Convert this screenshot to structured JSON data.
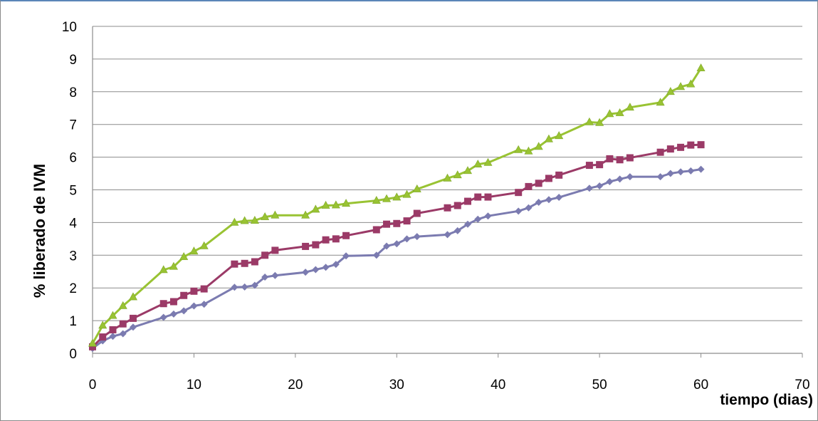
{
  "chart_data": {
    "type": "line",
    "xlabel": "tiempo (dias)",
    "ylabel": "% liberado de IVM",
    "xlim": [
      0,
      70
    ],
    "ylim": [
      0,
      10
    ],
    "x_ticks": [
      "0",
      "10",
      "20",
      "30",
      "40",
      "50",
      "60",
      "70"
    ],
    "y_ticks": [
      "0",
      "1",
      "2",
      "3",
      "4",
      "5",
      "6",
      "7",
      "8",
      "9",
      "10"
    ],
    "grid": "horizontal",
    "legend": "none",
    "series": [
      {
        "marker": "diamond",
        "color": "#7b7bb0",
        "x": [
          0,
          1,
          2,
          3,
          4,
          7,
          8,
          9,
          10,
          11,
          14,
          15,
          16,
          17,
          18,
          21,
          22,
          23,
          24,
          25,
          28,
          29,
          30,
          31,
          32,
          35,
          36,
          37,
          38,
          39,
          42,
          43,
          44,
          45,
          46,
          49,
          50,
          51,
          52,
          53,
          56,
          57,
          58,
          59,
          60
        ],
        "y": [
          0.15,
          0.38,
          0.52,
          0.6,
          0.8,
          1.1,
          1.2,
          1.3,
          1.45,
          1.5,
          2.02,
          2.03,
          2.08,
          2.33,
          2.38,
          2.48,
          2.56,
          2.63,
          2.72,
          2.98,
          3.0,
          3.28,
          3.35,
          3.5,
          3.57,
          3.63,
          3.75,
          3.95,
          4.1,
          4.2,
          4.35,
          4.45,
          4.62,
          4.7,
          4.77,
          5.05,
          5.12,
          5.25,
          5.33,
          5.4,
          5.4,
          5.5,
          5.55,
          5.58,
          5.63
        ]
      },
      {
        "marker": "square",
        "color": "#9b3a67",
        "x": [
          0,
          1,
          2,
          3,
          4,
          7,
          8,
          9,
          10,
          11,
          14,
          15,
          16,
          17,
          18,
          21,
          22,
          23,
          24,
          25,
          28,
          29,
          30,
          31,
          32,
          35,
          36,
          37,
          38,
          39,
          42,
          43,
          44,
          45,
          46,
          49,
          50,
          51,
          52,
          53,
          56,
          57,
          58,
          59,
          60
        ],
        "y": [
          0.2,
          0.5,
          0.72,
          0.9,
          1.07,
          1.52,
          1.58,
          1.77,
          1.9,
          1.97,
          2.73,
          2.75,
          2.8,
          3.0,
          3.15,
          3.27,
          3.32,
          3.47,
          3.5,
          3.6,
          3.78,
          3.95,
          3.97,
          4.05,
          4.28,
          4.45,
          4.52,
          4.65,
          4.78,
          4.78,
          4.92,
          5.1,
          5.2,
          5.35,
          5.45,
          5.75,
          5.77,
          5.95,
          5.92,
          5.98,
          6.15,
          6.25,
          6.3,
          6.37,
          6.38
        ]
      },
      {
        "marker": "triangle",
        "color": "#99c333",
        "x": [
          0,
          1,
          2,
          3,
          4,
          7,
          8,
          9,
          10,
          11,
          14,
          15,
          16,
          17,
          18,
          21,
          22,
          23,
          24,
          25,
          28,
          29,
          30,
          31,
          32,
          35,
          36,
          37,
          38,
          39,
          42,
          43,
          44,
          45,
          46,
          49,
          50,
          51,
          52,
          53,
          56,
          57,
          58,
          59,
          60
        ],
        "y": [
          0.3,
          0.85,
          1.15,
          1.45,
          1.72,
          2.55,
          2.65,
          2.95,
          3.12,
          3.28,
          4.0,
          4.05,
          4.06,
          4.17,
          4.22,
          4.22,
          4.4,
          4.52,
          4.53,
          4.58,
          4.67,
          4.72,
          4.77,
          4.85,
          5.02,
          5.35,
          5.45,
          5.58,
          5.78,
          5.83,
          6.22,
          6.18,
          6.32,
          6.55,
          6.65,
          7.07,
          7.05,
          7.32,
          7.35,
          7.52,
          7.67,
          8.0,
          8.15,
          8.23,
          8.72
        ]
      }
    ]
  }
}
